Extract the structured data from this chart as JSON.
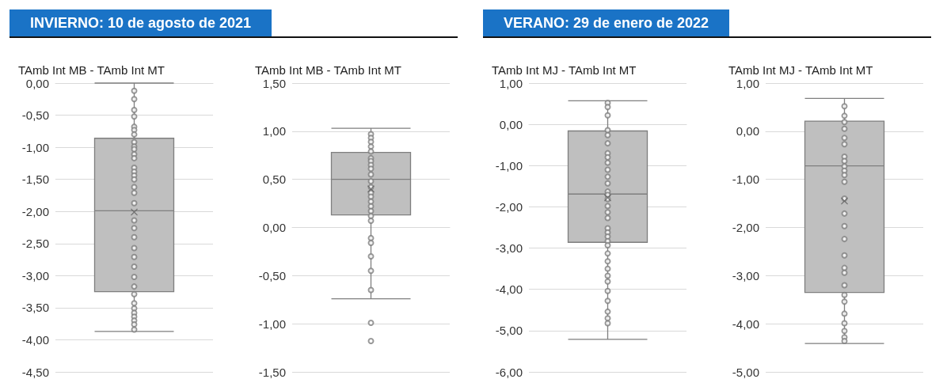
{
  "chart_data": [
    {
      "type": "box",
      "title": "TAmb Int MB - TAmb Int MT",
      "annotations": [
        "INVIERNO: 10 de agosto de 2021"
      ],
      "categories": [
        null
      ],
      "grid": "y",
      "tick_labels": "y",
      "marker": "circle",
      "ylim": [
        -4.5,
        0
      ],
      "yticks": [
        {
          "value": 0,
          "label": "0,00"
        },
        {
          "value": -0.5,
          "label": "-0,50"
        },
        {
          "value": -1,
          "label": "-1,00"
        },
        {
          "value": -1.5,
          "label": "-1,50"
        },
        {
          "value": -2,
          "label": "-2,00"
        },
        {
          "value": -2.5,
          "label": "-2,50"
        },
        {
          "value": -3,
          "label": "-3,00"
        },
        {
          "value": -3.5,
          "label": "-3,50"
        },
        {
          "value": -4,
          "label": "-4,00"
        },
        {
          "value": -4.5,
          "label": "-4,50"
        }
      ],
      "series": [
        {
          "type": "box",
          "color": "#bfbfbf",
          "boxes": [
            {
              "low": -3.87,
              "q1": -3.25,
              "median": -1.99,
              "q3": -0.86,
              "high": 0,
              "mean": -2.01
            }
          ]
        },
        {
          "type": "scatter",
          "color": "#7f7f7f",
          "x": [
            null,
            null,
            null,
            null,
            null,
            null,
            null,
            null,
            null,
            null,
            null,
            null,
            null,
            null,
            null,
            null,
            null,
            null,
            null,
            null,
            null,
            null,
            null,
            null,
            null,
            null,
            null,
            null,
            null,
            null,
            null,
            null,
            null,
            null,
            null
          ],
          "values": [
            -0.12,
            -0.25,
            -0.42,
            -0.52,
            -0.68,
            -0.73,
            -0.8,
            -0.92,
            -0.99,
            -1.03,
            -1.11,
            -1.17,
            -1.32,
            -1.38,
            -1.44,
            -1.5,
            -1.62,
            -1.71,
            -1.87,
            -2.14,
            -2.26,
            -2.4,
            -2.57,
            -2.71,
            -2.86,
            -3.02,
            -3.17,
            -3.29,
            -3.43,
            -3.51,
            -3.58,
            -3.64,
            -3.7,
            -3.76,
            -3.84
          ]
        }
      ]
    },
    {
      "type": "box",
      "title": "TAmb Int MB - TAmb Int MT",
      "categories": [
        null
      ],
      "grid": "y",
      "tick_labels": "y",
      "marker": "circle",
      "ylim": [
        -1.5,
        1.5
      ],
      "yticks": [
        {
          "value": 1.5,
          "label": "1,50"
        },
        {
          "value": 1,
          "label": "1,00"
        },
        {
          "value": 0.5,
          "label": "0,50"
        },
        {
          "value": 0,
          "label": "0,00"
        },
        {
          "value": -0.5,
          "label": "-0,50"
        },
        {
          "value": -1,
          "label": "-1,00"
        },
        {
          "value": -1.5,
          "label": "-1,50"
        }
      ],
      "series": [
        {
          "type": "box",
          "color": "#bfbfbf",
          "boxes": [
            {
              "low": -0.74,
              "q1": 0.13,
              "median": 0.5,
              "q3": 0.78,
              "high": 1.03,
              "mean": 0.4,
              "outliers": [
                -0.99,
                -1.18
              ]
            }
          ]
        },
        {
          "type": "scatter",
          "color": "#7f7f7f",
          "x": [
            null,
            null,
            null,
            null,
            null,
            null,
            null,
            null,
            null,
            null,
            null,
            null,
            null,
            null,
            null,
            null,
            null,
            null,
            null,
            null,
            null,
            null,
            null,
            null
          ],
          "values": [
            0.97,
            0.93,
            0.89,
            0.84,
            0.79,
            0.72,
            0.69,
            0.65,
            0.61,
            0.55,
            0.48,
            0.42,
            0.36,
            0.32,
            0.27,
            0.22,
            0.17,
            0.12,
            0.07,
            -0.11,
            -0.16,
            -0.3,
            -0.45,
            -0.65
          ]
        }
      ]
    },
    {
      "type": "box",
      "title": "TAmb Int MJ - TAmb Int MT",
      "annotations": [
        "VERANO: 29 de enero de 2022"
      ],
      "categories": [
        null
      ],
      "grid": "y",
      "tick_labels": "y",
      "marker": "circle",
      "ylim": [
        -6,
        1
      ],
      "yticks": [
        {
          "value": 1,
          "label": "1,00"
        },
        {
          "value": 0,
          "label": "0,00"
        },
        {
          "value": -1,
          "label": "-1,00"
        },
        {
          "value": -2,
          "label": "-2,00"
        },
        {
          "value": -3,
          "label": "-3,00"
        },
        {
          "value": -4,
          "label": "-4,00"
        },
        {
          "value": -5,
          "label": "-5,00"
        },
        {
          "value": -6,
          "label": "-6,00"
        }
      ],
      "series": [
        {
          "type": "box",
          "color": "#bfbfbf",
          "boxes": [
            {
              "low": -5.21,
              "q1": -2.86,
              "median": -1.69,
              "q3": -0.16,
              "high": 0.57,
              "mean": -1.78
            }
          ]
        },
        {
          "type": "scatter",
          "color": "#7f7f7f",
          "x": [
            null,
            null,
            null,
            null,
            null,
            null,
            null,
            null,
            null,
            null,
            null,
            null,
            null,
            null,
            null,
            null,
            null,
            null,
            null,
            null,
            null,
            null,
            null,
            null,
            null,
            null,
            null,
            null,
            null,
            null,
            null,
            null,
            null
          ],
          "values": [
            0.52,
            0.42,
            0.22,
            -0.14,
            -0.26,
            -0.46,
            -0.7,
            -0.8,
            -0.93,
            -1.1,
            -1.27,
            -1.43,
            -1.63,
            -1.71,
            -1.81,
            -1.98,
            -2.13,
            -2.27,
            -2.52,
            -2.62,
            -2.72,
            -2.83,
            -2.93,
            -3.13,
            -3.32,
            -3.5,
            -3.67,
            -3.81,
            -4.04,
            -4.28,
            -4.54,
            -4.7,
            -4.82
          ]
        }
      ]
    },
    {
      "type": "box",
      "title": "TAmb Int MJ - TAmb Int MT",
      "categories": [
        null
      ],
      "grid": "y",
      "tick_labels": "y",
      "marker": "circle",
      "ylim": [
        -5,
        1
      ],
      "yticks": [
        {
          "value": 1,
          "label": "1,00"
        },
        {
          "value": 0,
          "label": "0,00"
        },
        {
          "value": -1,
          "label": "-1,00"
        },
        {
          "value": -2,
          "label": "-2,00"
        },
        {
          "value": -3,
          "label": "-3,00"
        },
        {
          "value": -4,
          "label": "-4,00"
        },
        {
          "value": -5,
          "label": "-5,00"
        }
      ],
      "series": [
        {
          "type": "box",
          "color": "#bfbfbf",
          "boxes": [
            {
              "low": -4.41,
              "q1": -3.35,
              "median": -0.72,
              "q3": 0.21,
              "high": 0.68,
              "mean": -1.45
            }
          ]
        },
        {
          "type": "scatter",
          "color": "#7f7f7f",
          "x": [
            null,
            null,
            null,
            null,
            null,
            null,
            null,
            null,
            null,
            null,
            null,
            null,
            null,
            null,
            null,
            null,
            null,
            null,
            null,
            null,
            null,
            null,
            null,
            null,
            null,
            null,
            null
          ],
          "values": [
            0.52,
            0.32,
            0.19,
            0.05,
            -0.14,
            -0.27,
            -0.53,
            -0.62,
            -0.73,
            -0.82,
            -0.91,
            -1.05,
            -1.4,
            -1.71,
            -1.97,
            -2.24,
            -2.58,
            -2.84,
            -2.94,
            -3.2,
            -3.4,
            -3.54,
            -3.79,
            -3.99,
            -4.15,
            -4.28,
            -4.36
          ]
        }
      ]
    }
  ]
}
